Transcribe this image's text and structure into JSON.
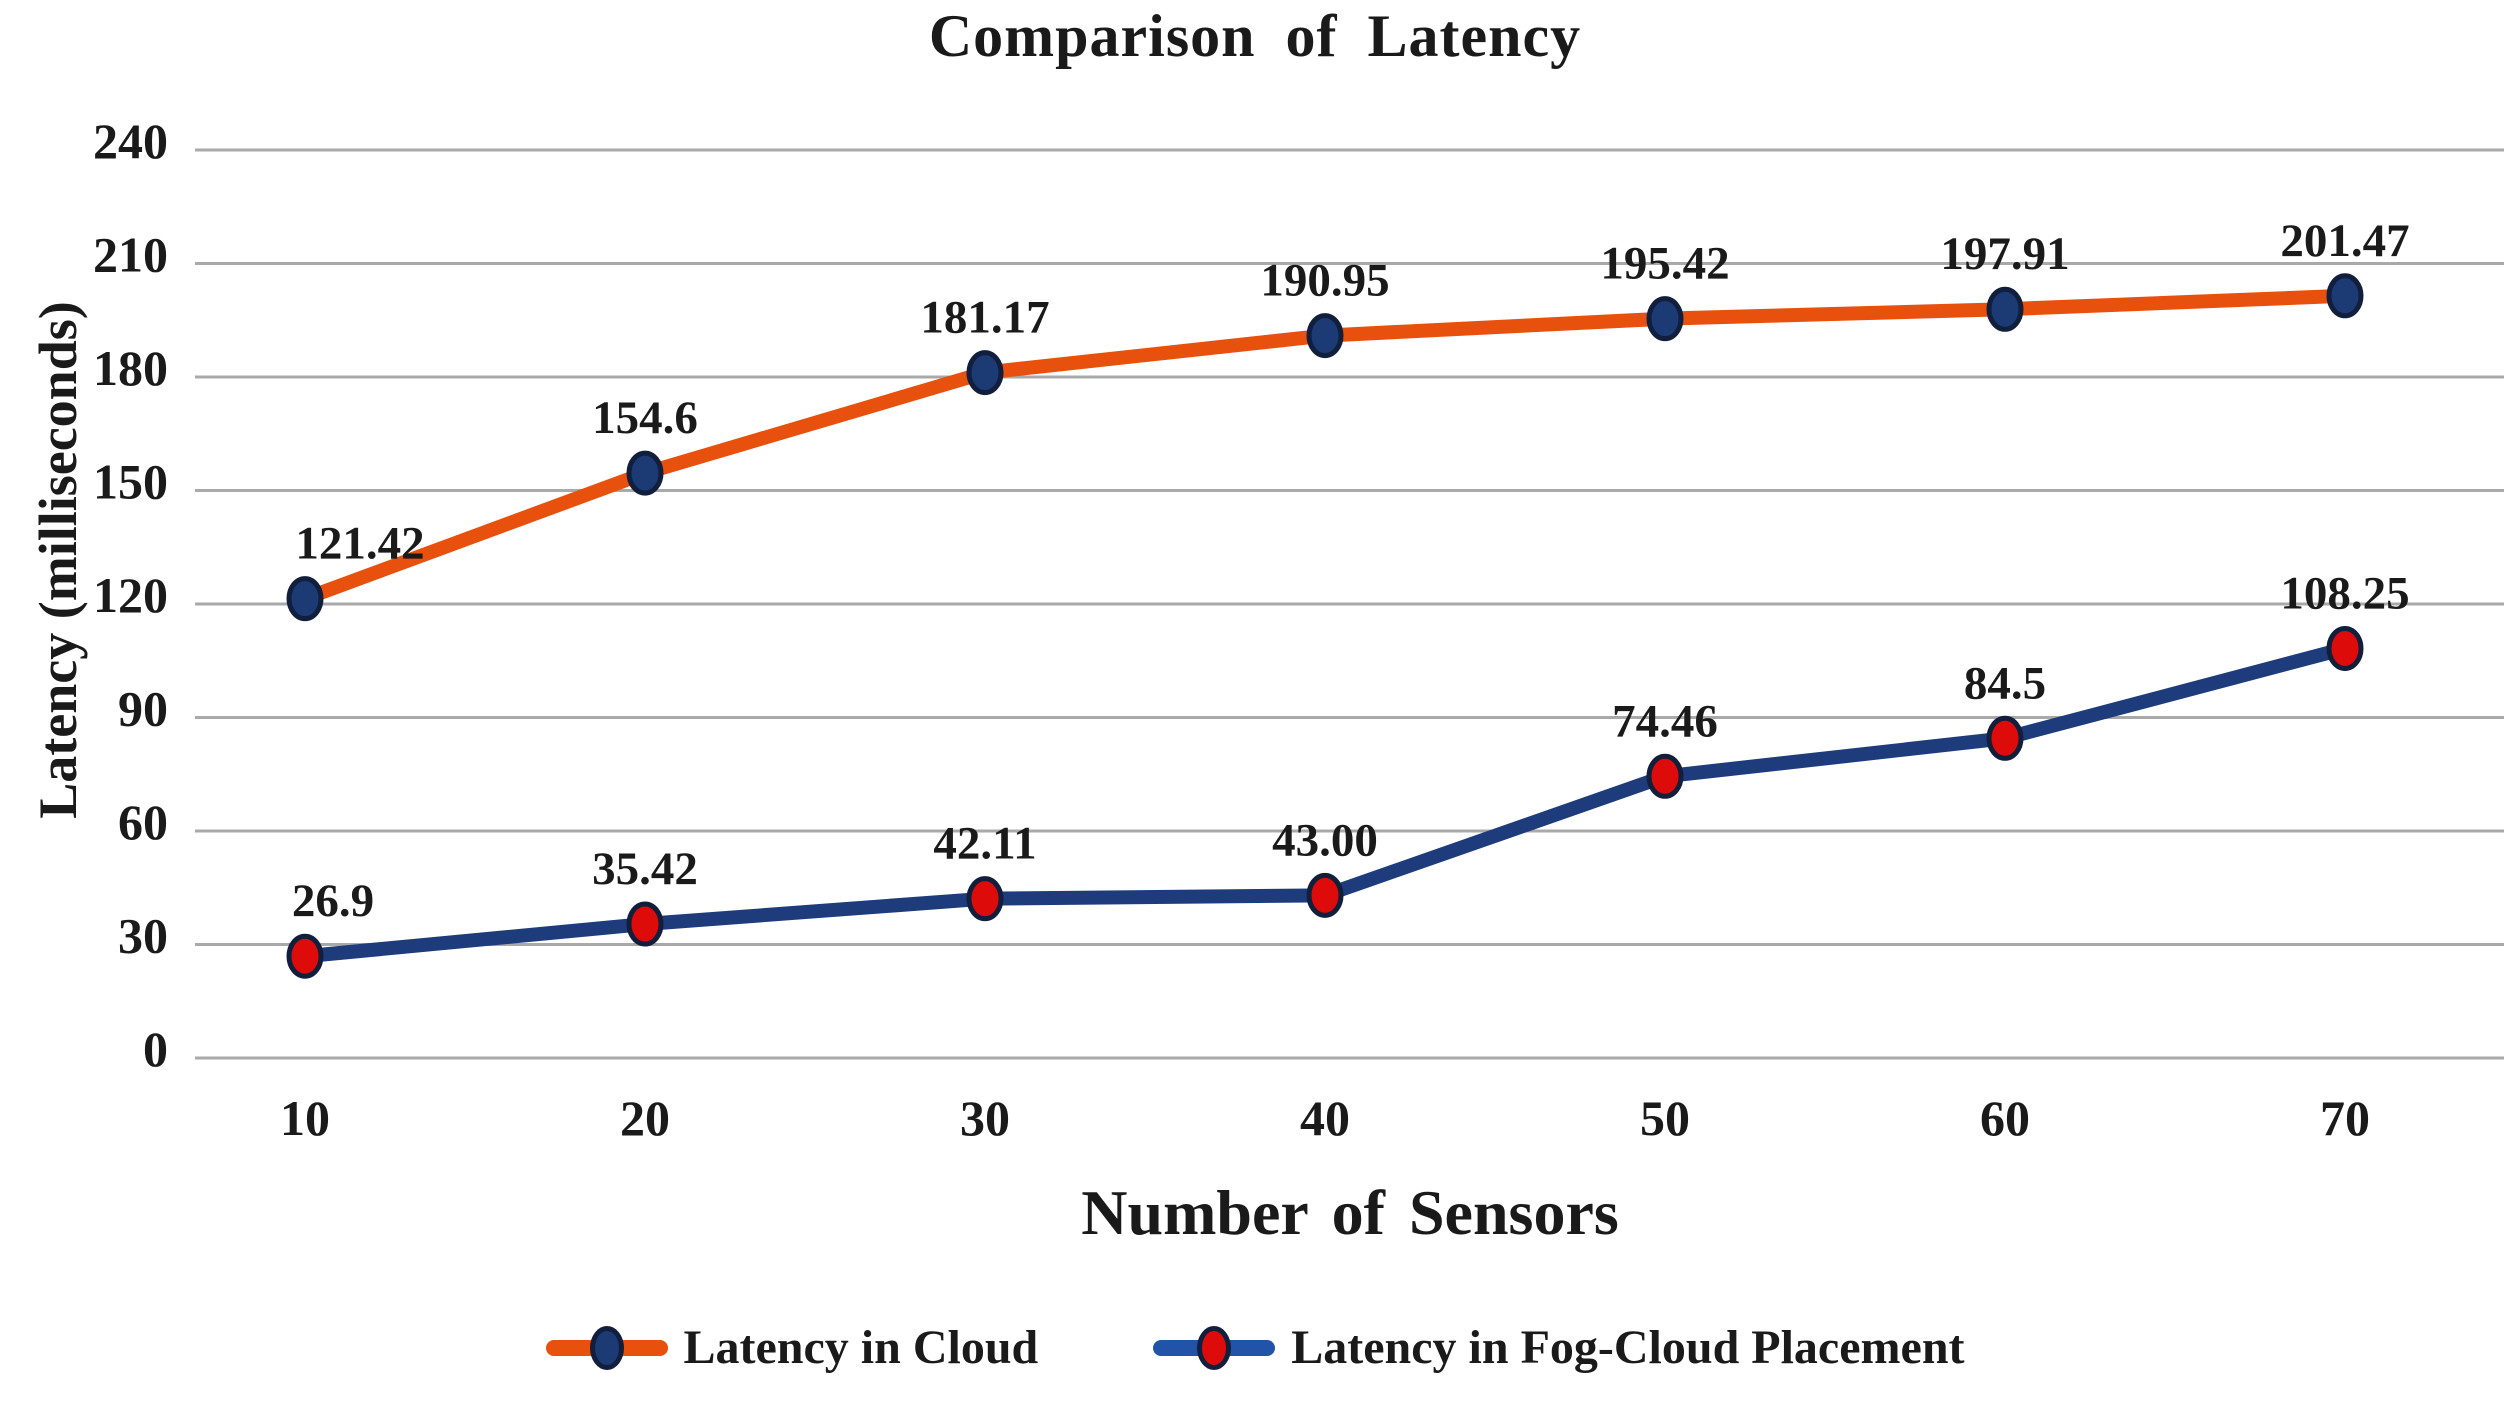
{
  "chart_data": {
    "type": "line",
    "title": "Comparison of Latency",
    "xlabel": "Number of Sensors",
    "ylabel": "Latency (milliseconds)",
    "x": [
      10,
      20,
      30,
      40,
      50,
      60,
      70
    ],
    "ylim": [
      0,
      240
    ],
    "yticks": [
      0,
      30,
      60,
      90,
      120,
      150,
      180,
      210,
      240
    ],
    "grid": "horizontal",
    "legend_position": "bottom",
    "series": [
      {
        "name": "Latency in Cloud",
        "values": [
          121.42,
          154.6,
          181.17,
          190.95,
          195.42,
          197.91,
          201.47
        ],
        "labels": [
          "121.42",
          "154.6",
          "181.17",
          "190.95",
          "195.42",
          "197.91",
          "201.47"
        ],
        "line_color": "#E8500D",
        "marker_fill": "#1C3A74",
        "marker_stroke": "#111F3C"
      },
      {
        "name": "Latency in Fog-Cloud Placement",
        "values": [
          26.9,
          35.42,
          42.11,
          43.0,
          74.46,
          84.5,
          108.25
        ],
        "labels": [
          "26.9",
          "35.42",
          "42.11",
          "43.00",
          "74.46",
          "84.5",
          "108.25"
        ],
        "line_color": "#1E3C7C",
        "marker_fill": "#DE0B0B",
        "marker_stroke": "#111F3C"
      }
    ],
    "colors": {
      "gridline": "#A9A9A9",
      "text": "#1A1A1A",
      "background": "#FFFFFF",
      "legend_fog_line": "#2153A8"
    }
  },
  "legend": {
    "items": [
      {
        "label": "Latency in Cloud"
      },
      {
        "label": "Latency in Fog-Cloud Placement"
      }
    ]
  }
}
